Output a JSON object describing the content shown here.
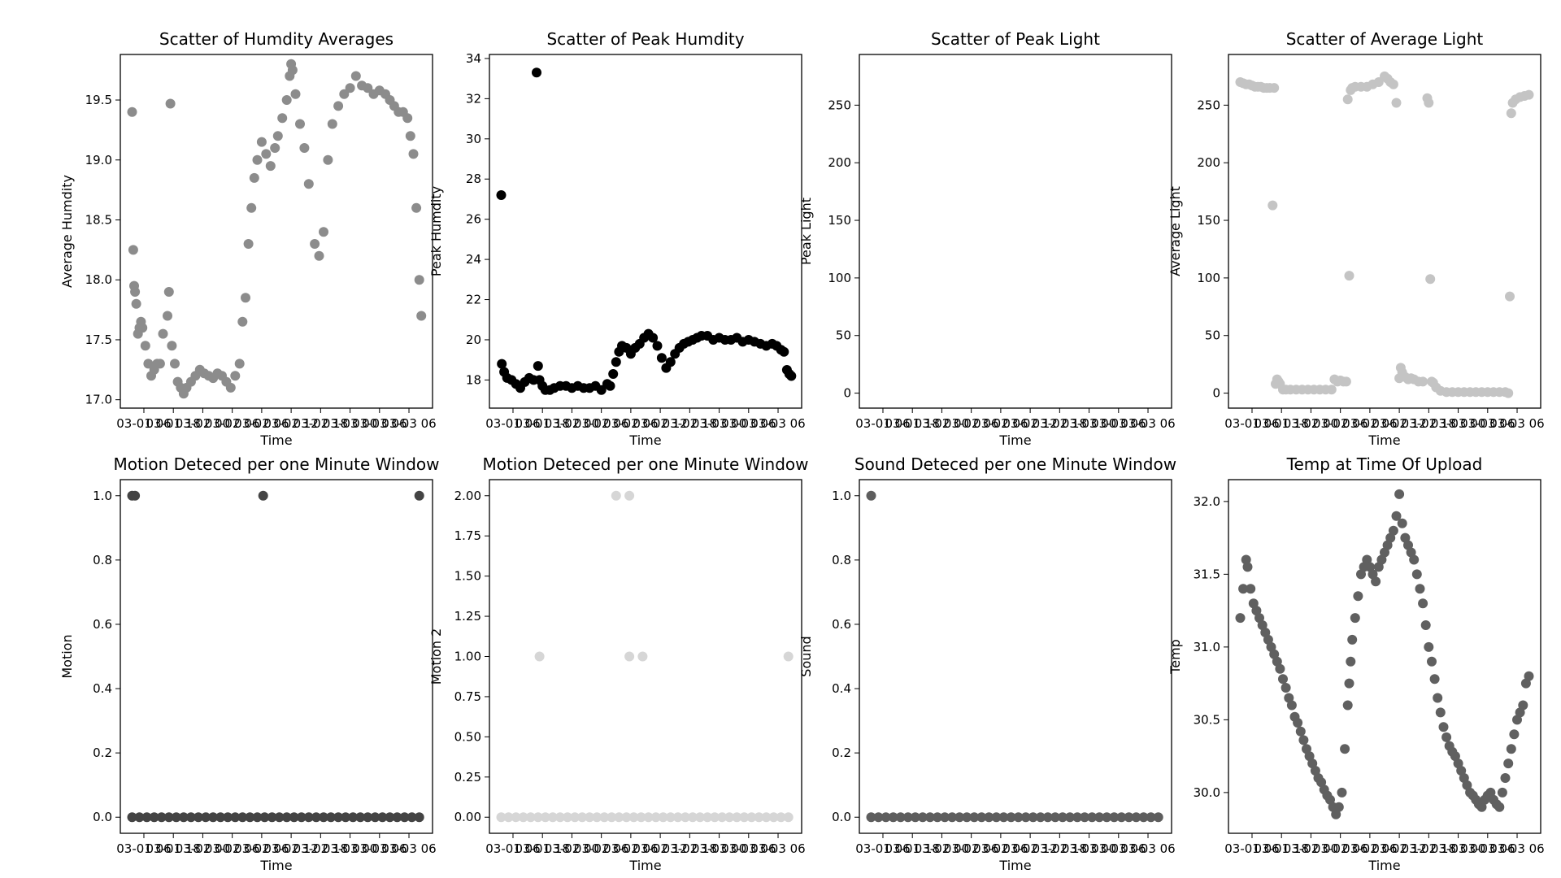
{
  "chart_data": [
    {
      "type": "scatter",
      "title": "Scatter of Humdity Averages",
      "xlabel": "Time",
      "ylabel": "Average Humdity",
      "xlim": [
        -0.3,
        10.3
      ],
      "ylim": [
        16.93,
        19.88
      ],
      "yticks": [
        17.0,
        17.5,
        18.0,
        18.5,
        19.0,
        19.5
      ],
      "ytick_labels": [
        "17.0",
        "17.5",
        "18.0",
        "18.5",
        "19.0",
        "19.5"
      ],
      "xticks": [
        0.5,
        1.5,
        2.5,
        3.5,
        4.5,
        5.5,
        6.5,
        7.5,
        8.5,
        9.5
      ],
      "xtick_labels": [
        "03-01 06",
        "03-01 18",
        "03-02 00",
        "03-02 06",
        "03-02 06",
        "03-02 12",
        "03-02 18",
        "03-03 00",
        "03-03 06",
        "03-03 06"
      ],
      "color": "#8c8c8c",
      "x": [
        0.1,
        0.14,
        0.17,
        0.2,
        0.24,
        0.3,
        0.35,
        0.4,
        0.45,
        0.55,
        0.65,
        0.75,
        0.85,
        0.95,
        1.05,
        1.15,
        1.3,
        1.35,
        1.4,
        1.45,
        1.55,
        1.65,
        1.75,
        1.85,
        1.95,
        2.1,
        2.25,
        2.4,
        2.55,
        2.7,
        2.85,
        3.0,
        3.15,
        3.3,
        3.45,
        3.6,
        3.75,
        3.85,
        3.95,
        4.05,
        4.15,
        4.25,
        4.35,
        4.5,
        4.65,
        4.8,
        4.95,
        5.05,
        5.2,
        5.35,
        5.45,
        5.5,
        5.55,
        5.65,
        5.8,
        5.95,
        6.1,
        6.3,
        6.45,
        6.6,
        6.75,
        6.9,
        7.1,
        7.3,
        7.5,
        7.7,
        7.9,
        8.1,
        8.3,
        8.5,
        8.7,
        8.85,
        9.0,
        9.15,
        9.3,
        9.45,
        9.55,
        9.65,
        9.75,
        9.85,
        9.92
      ],
      "y": [
        19.4,
        18.25,
        17.95,
        17.9,
        17.8,
        17.55,
        17.6,
        17.65,
        17.6,
        17.45,
        17.3,
        17.2,
        17.25,
        17.3,
        17.3,
        17.55,
        17.7,
        17.9,
        19.47,
        17.45,
        17.3,
        17.15,
        17.1,
        17.05,
        17.1,
        17.15,
        17.2,
        17.25,
        17.22,
        17.2,
        17.18,
        17.22,
        17.2,
        17.15,
        17.1,
        17.2,
        17.3,
        17.65,
        17.85,
        18.3,
        18.6,
        18.85,
        19.0,
        19.15,
        19.05,
        18.95,
        19.1,
        19.2,
        19.35,
        19.5,
        19.7,
        19.8,
        19.75,
        19.55,
        19.3,
        19.1,
        18.8,
        18.3,
        18.2,
        18.4,
        19.0,
        19.3,
        19.45,
        19.55,
        19.6,
        19.7,
        19.62,
        19.6,
        19.55,
        19.58,
        19.55,
        19.5,
        19.45,
        19.4,
        19.4,
        19.35,
        19.2,
        19.05,
        18.6,
        18.0,
        17.7
      ]
    },
    {
      "type": "scatter",
      "title": "Scatter of Peak Humdity",
      "xlabel": "Time",
      "ylabel": "Peak Humdity",
      "xlim": [
        -0.3,
        10.3
      ],
      "ylim": [
        16.6,
        34.2
      ],
      "yticks": [
        18,
        20,
        22,
        24,
        26,
        28,
        30,
        32,
        34
      ],
      "ytick_labels": [
        "18",
        "20",
        "22",
        "24",
        "26",
        "28",
        "30",
        "32",
        "34"
      ],
      "xticks": [
        0.5,
        1.5,
        2.5,
        3.5,
        4.5,
        5.5,
        6.5,
        7.5,
        8.5,
        9.5
      ],
      "xtick_labels": [
        "03-01 06",
        "03-01 18",
        "03-02 00",
        "03-02 06",
        "03-02 06",
        "03-02 12",
        "03-02 18",
        "03-03 00",
        "03-03 06",
        "03-03 06"
      ],
      "color": "#000000",
      "x": [
        0.1,
        0.12,
        0.2,
        0.3,
        0.45,
        0.6,
        0.75,
        0.9,
        1.05,
        1.2,
        1.3,
        1.35,
        1.4,
        1.5,
        1.6,
        1.75,
        1.9,
        2.1,
        2.3,
        2.5,
        2.7,
        2.9,
        3.1,
        3.3,
        3.5,
        3.7,
        3.8,
        3.9,
        4.0,
        4.1,
        4.2,
        4.35,
        4.5,
        4.65,
        4.8,
        4.95,
        5.1,
        5.25,
        5.4,
        5.55,
        5.7,
        5.85,
        6.0,
        6.15,
        6.3,
        6.45,
        6.6,
        6.75,
        6.9,
        7.1,
        7.3,
        7.5,
        7.7,
        7.9,
        8.1,
        8.3,
        8.5,
        8.7,
        8.9,
        9.1,
        9.3,
        9.45,
        9.6,
        9.7,
        9.8,
        9.88,
        9.95
      ],
      "y": [
        27.2,
        18.8,
        18.4,
        18.1,
        18.0,
        17.8,
        17.6,
        17.9,
        18.1,
        18.0,
        33.3,
        18.7,
        18.0,
        17.7,
        17.5,
        17.5,
        17.6,
        17.7,
        17.7,
        17.6,
        17.7,
        17.6,
        17.6,
        17.7,
        17.5,
        17.8,
        17.7,
        18.3,
        18.9,
        19.4,
        19.7,
        19.6,
        19.3,
        19.6,
        19.8,
        20.1,
        20.3,
        20.1,
        19.7,
        19.1,
        18.6,
        18.9,
        19.3,
        19.6,
        19.8,
        19.9,
        20.0,
        20.1,
        20.2,
        20.2,
        20.0,
        20.1,
        20.0,
        20.0,
        20.1,
        19.9,
        20.0,
        19.9,
        19.8,
        19.7,
        19.8,
        19.7,
        19.5,
        19.4,
        18.5,
        18.3,
        18.2
      ]
    },
    {
      "type": "scatter",
      "title": "Scatter of Peak Light",
      "xlabel": "Time",
      "ylabel": "Peak Light",
      "xlim": [
        -0.3,
        10.3
      ],
      "ylim": [
        -13,
        294
      ],
      "yticks": [
        0,
        50,
        100,
        150,
        200,
        250
      ],
      "ytick_labels": [
        "0",
        "50",
        "100",
        "150",
        "200",
        "250"
      ],
      "xticks": [
        0.5,
        1.5,
        2.5,
        3.5,
        4.5,
        5.5,
        6.5,
        7.5,
        8.5,
        9.5
      ],
      "xtick_labels": [
        "03-01 06",
        "03-01 18",
        "03-02 00",
        "03-02 06",
        "03-02 06",
        "03-02 12",
        "03-02 18",
        "03-03 00",
        "03-03 06",
        "03-03 06"
      ],
      "color": "#ffffff",
      "x": [],
      "y": []
    },
    {
      "type": "scatter",
      "title": "Scatter of Average Light",
      "xlabel": "Time",
      "ylabel": "Average Light",
      "xlim": [
        -0.3,
        10.3
      ],
      "ylim": [
        -13,
        294
      ],
      "yticks": [
        0,
        50,
        100,
        150,
        200,
        250
      ],
      "ytick_labels": [
        "0",
        "50",
        "100",
        "150",
        "200",
        "250"
      ],
      "xticks": [
        0.5,
        1.5,
        2.5,
        3.5,
        4.5,
        5.5,
        6.5,
        7.5,
        8.5,
        9.5
      ],
      "xtick_labels": [
        "03-01 06",
        "03-01 18",
        "03-02 00",
        "03-02 06",
        "03-02 06",
        "03-02 12",
        "03-02 18",
        "03-03 00",
        "03-03 06",
        "03-03 06"
      ],
      "color": "#c4c4c4",
      "x": [
        0.1,
        0.2,
        0.3,
        0.4,
        0.5,
        0.6,
        0.7,
        0.8,
        0.9,
        1.0,
        1.1,
        1.2,
        1.25,
        1.3,
        1.35,
        1.4,
        1.45,
        1.55,
        1.65,
        1.8,
        2.0,
        2.2,
        2.4,
        2.6,
        2.8,
        3.0,
        3.2,
        3.3,
        3.4,
        3.5,
        3.6,
        3.7,
        3.75,
        3.8,
        3.85,
        3.9,
        4.0,
        4.2,
        4.4,
        4.6,
        4.8,
        5.0,
        5.1,
        5.2,
        5.3,
        5.4,
        5.5,
        5.55,
        5.6,
        5.7,
        5.8,
        5.9,
        6.0,
        6.15,
        6.3,
        6.45,
        6.5,
        6.55,
        6.6,
        6.65,
        6.75,
        6.9,
        7.1,
        7.3,
        7.5,
        7.7,
        7.9,
        8.1,
        8.3,
        8.5,
        8.7,
        8.9,
        9.1,
        9.2,
        9.25,
        9.3,
        9.35,
        9.45,
        9.6,
        9.75,
        9.9
      ],
      "y": [
        270,
        269,
        268,
        268,
        267,
        266,
        266,
        266,
        265,
        265,
        265,
        163,
        265,
        8,
        12,
        10,
        8,
        3,
        3,
        3,
        3,
        3,
        3,
        3,
        3,
        3,
        3,
        12,
        10,
        11,
        10,
        10,
        255,
        102,
        263,
        265,
        266,
        266,
        266,
        268,
        270,
        275,
        273,
        270,
        268,
        252,
        13,
        22,
        18,
        14,
        12,
        13,
        12,
        10,
        10,
        256,
        252,
        99,
        10,
        9,
        5,
        2,
        1,
        1,
        1,
        1,
        1,
        1,
        1,
        1,
        1,
        1,
        1,
        0,
        84,
        243,
        252,
        255,
        257,
        258,
        259
      ]
    },
    {
      "type": "scatter",
      "title": "Motion Deteced per one Minute Window",
      "xlabel": "Time",
      "ylabel": "Motion",
      "xlim": [
        -0.3,
        10.3
      ],
      "ylim": [
        -0.05,
        1.05
      ],
      "yticks": [
        0.0,
        0.2,
        0.4,
        0.6,
        0.8,
        1.0
      ],
      "ytick_labels": [
        "0.0",
        "0.2",
        "0.4",
        "0.6",
        "0.8",
        "1.0"
      ],
      "xticks": [
        0.5,
        1.5,
        2.5,
        3.5,
        4.5,
        5.5,
        6.5,
        7.5,
        8.5,
        9.5
      ],
      "xtick_labels": [
        "03-01 06",
        "03-01 18",
        "03-02 00",
        "03-02 06",
        "03-02 06",
        "03-02 12",
        "03-02 18",
        "03-03 00",
        "03-03 06",
        "03-03 06"
      ],
      "color": "#444444",
      "x": [
        0.1,
        0.2,
        4.55,
        9.85,
        0.1,
        0.35,
        0.6,
        0.85,
        1.1,
        1.35,
        1.6,
        1.85,
        2.1,
        2.35,
        2.6,
        2.85,
        3.1,
        3.35,
        3.6,
        3.85,
        4.1,
        4.35,
        4.6,
        4.85,
        5.1,
        5.35,
        5.6,
        5.85,
        6.1,
        6.35,
        6.6,
        6.85,
        7.1,
        7.35,
        7.6,
        7.85,
        8.1,
        8.35,
        8.6,
        8.85,
        9.1,
        9.35,
        9.6,
        9.85
      ],
      "y": [
        1,
        1,
        1,
        1,
        0,
        0,
        0,
        0,
        0,
        0,
        0,
        0,
        0,
        0,
        0,
        0,
        0,
        0,
        0,
        0,
        0,
        0,
        0,
        0,
        0,
        0,
        0,
        0,
        0,
        0,
        0,
        0,
        0,
        0,
        0,
        0,
        0,
        0,
        0,
        0,
        0,
        0,
        0,
        0
      ]
    },
    {
      "type": "scatter",
      "title": "Motion Deteced per one Minute Window",
      "xlabel": "Time",
      "ylabel": "Motion 2",
      "xlim": [
        -0.3,
        10.3
      ],
      "ylim": [
        -0.1,
        2.1
      ],
      "yticks": [
        0.0,
        0.25,
        0.5,
        0.75,
        1.0,
        1.25,
        1.5,
        1.75,
        2.0
      ],
      "ytick_labels": [
        "0.00",
        "0.25",
        "0.50",
        "0.75",
        "1.00",
        "1.25",
        "1.50",
        "1.75",
        "2.00"
      ],
      "xticks": [
        0.5,
        1.5,
        2.5,
        3.5,
        4.5,
        5.5,
        6.5,
        7.5,
        8.5,
        9.5
      ],
      "xtick_labels": [
        "03-01 06",
        "03-01 18",
        "03-02 00",
        "03-02 06",
        "03-02 06",
        "03-02 12",
        "03-02 18",
        "03-03 00",
        "03-03 06",
        "03-03 06"
      ],
      "color": "#d6d6d6",
      "x": [
        4.0,
        4.45,
        1.4,
        4.45,
        4.9,
        9.85,
        0.1,
        0.35,
        0.6,
        0.85,
        1.1,
        1.35,
        1.6,
        1.85,
        2.1,
        2.35,
        2.6,
        2.85,
        3.1,
        3.35,
        3.6,
        3.85,
        4.1,
        4.35,
        4.6,
        4.85,
        5.1,
        5.35,
        5.6,
        5.85,
        6.1,
        6.35,
        6.6,
        6.85,
        7.1,
        7.35,
        7.6,
        7.85,
        8.1,
        8.35,
        8.6,
        8.85,
        9.1,
        9.35,
        9.6,
        9.85
      ],
      "y": [
        2,
        2,
        1,
        1,
        1,
        1,
        0,
        0,
        0,
        0,
        0,
        0,
        0,
        0,
        0,
        0,
        0,
        0,
        0,
        0,
        0,
        0,
        0,
        0,
        0,
        0,
        0,
        0,
        0,
        0,
        0,
        0,
        0,
        0,
        0,
        0,
        0,
        0,
        0,
        0,
        0,
        0,
        0,
        0,
        0,
        0
      ]
    },
    {
      "type": "scatter",
      "title": "Sound Deteced per one Minute Window",
      "xlabel": "Time",
      "ylabel": "Sound",
      "xlim": [
        -0.3,
        10.3
      ],
      "ylim": [
        -0.05,
        1.05
      ],
      "yticks": [
        0.0,
        0.2,
        0.4,
        0.6,
        0.8,
        1.0
      ],
      "ytick_labels": [
        "0.0",
        "0.2",
        "0.4",
        "0.6",
        "0.8",
        "1.0"
      ],
      "xticks": [
        0.5,
        1.5,
        2.5,
        3.5,
        4.5,
        5.5,
        6.5,
        7.5,
        8.5,
        9.5
      ],
      "xtick_labels": [
        "03-01 06",
        "03-01 18",
        "03-02 00",
        "03-02 06",
        "03-02 06",
        "03-02 12",
        "03-02 18",
        "03-03 00",
        "03-03 06",
        "03-03 06"
      ],
      "color": "#5e5e5e",
      "x": [
        0.1,
        0.1,
        0.35,
        0.6,
        0.85,
        1.1,
        1.35,
        1.6,
        1.85,
        2.1,
        2.35,
        2.6,
        2.85,
        3.1,
        3.35,
        3.6,
        3.85,
        4.1,
        4.35,
        4.6,
        4.85,
        5.1,
        5.35,
        5.6,
        5.85,
        6.1,
        6.35,
        6.6,
        6.85,
        7.1,
        7.35,
        7.6,
        7.85,
        8.1,
        8.35,
        8.6,
        8.85,
        9.1,
        9.35,
        9.6,
        9.85
      ],
      "y": [
        1,
        0,
        0,
        0,
        0,
        0,
        0,
        0,
        0,
        0,
        0,
        0,
        0,
        0,
        0,
        0,
        0,
        0,
        0,
        0,
        0,
        0,
        0,
        0,
        0,
        0,
        0,
        0,
        0,
        0,
        0,
        0,
        0,
        0,
        0,
        0,
        0,
        0,
        0,
        0,
        0
      ]
    },
    {
      "type": "scatter",
      "title": "Temp at Time Of Upload",
      "xlabel": "Time",
      "ylabel": "Temp",
      "xlim": [
        -0.3,
        10.3
      ],
      "ylim": [
        29.72,
        32.15
      ],
      "yticks": [
        30.0,
        30.5,
        31.0,
        31.5,
        32.0
      ],
      "ytick_labels": [
        "30.0",
        "30.5",
        "31.0",
        "31.5",
        "32.0"
      ],
      "xticks": [
        0.5,
        1.5,
        2.5,
        3.5,
        4.5,
        5.5,
        6.5,
        7.5,
        8.5,
        9.5
      ],
      "xtick_labels": [
        "03-01 06",
        "03-01 18",
        "03-02 00",
        "03-02 06",
        "03-02 06",
        "03-02 12",
        "03-02 18",
        "03-03 00",
        "03-03 06",
        "03-03 06"
      ],
      "color": "#606060",
      "x": [
        0.1,
        0.2,
        0.3,
        0.35,
        0.45,
        0.55,
        0.65,
        0.75,
        0.85,
        0.95,
        1.05,
        1.15,
        1.25,
        1.35,
        1.45,
        1.55,
        1.65,
        1.75,
        1.85,
        1.95,
        2.05,
        2.15,
        2.25,
        2.35,
        2.45,
        2.55,
        2.65,
        2.75,
        2.85,
        2.95,
        3.05,
        3.15,
        3.25,
        3.35,
        3.45,
        3.55,
        3.65,
        3.75,
        3.8,
        3.85,
        3.9,
        4.0,
        4.1,
        4.2,
        4.3,
        4.4,
        4.5,
        4.6,
        4.7,
        4.8,
        4.9,
        5.0,
        5.1,
        5.2,
        5.3,
        5.4,
        5.5,
        5.6,
        5.7,
        5.8,
        5.9,
        6.0,
        6.1,
        6.2,
        6.3,
        6.4,
        6.5,
        6.6,
        6.7,
        6.8,
        6.9,
        7.0,
        7.1,
        7.2,
        7.3,
        7.4,
        7.5,
        7.6,
        7.7,
        7.8,
        7.9,
        8.0,
        8.1,
        8.2,
        8.3,
        8.4,
        8.5,
        8.6,
        8.7,
        8.8,
        8.9,
        9.0,
        9.1,
        9.2,
        9.3,
        9.4,
        9.5,
        9.6,
        9.7,
        9.8,
        9.9
      ],
      "y": [
        31.2,
        31.4,
        31.6,
        31.55,
        31.4,
        31.3,
        31.25,
        31.2,
        31.15,
        31.1,
        31.05,
        31.0,
        30.95,
        30.9,
        30.85,
        30.78,
        30.72,
        30.65,
        30.6,
        30.52,
        30.48,
        30.42,
        30.36,
        30.3,
        30.25,
        30.2,
        30.15,
        30.1,
        30.07,
        30.02,
        29.98,
        29.95,
        29.9,
        29.85,
        29.9,
        30.0,
        30.3,
        30.6,
        30.75,
        30.9,
        31.05,
        31.2,
        31.35,
        31.5,
        31.55,
        31.6,
        31.55,
        31.5,
        31.45,
        31.55,
        31.6,
        31.65,
        31.7,
        31.75,
        31.8,
        31.9,
        32.05,
        31.85,
        31.75,
        31.7,
        31.65,
        31.6,
        31.5,
        31.4,
        31.3,
        31.15,
        31.0,
        30.9,
        30.78,
        30.65,
        30.55,
        30.45,
        30.38,
        30.32,
        30.28,
        30.25,
        30.2,
        30.15,
        30.1,
        30.05,
        30.0,
        29.98,
        29.95,
        29.92,
        29.9,
        29.95,
        29.98,
        30.0,
        29.95,
        29.92,
        29.9,
        30.0,
        30.1,
        30.2,
        30.3,
        30.4,
        30.5,
        30.55,
        30.6,
        30.75,
        30.8
      ]
    }
  ]
}
